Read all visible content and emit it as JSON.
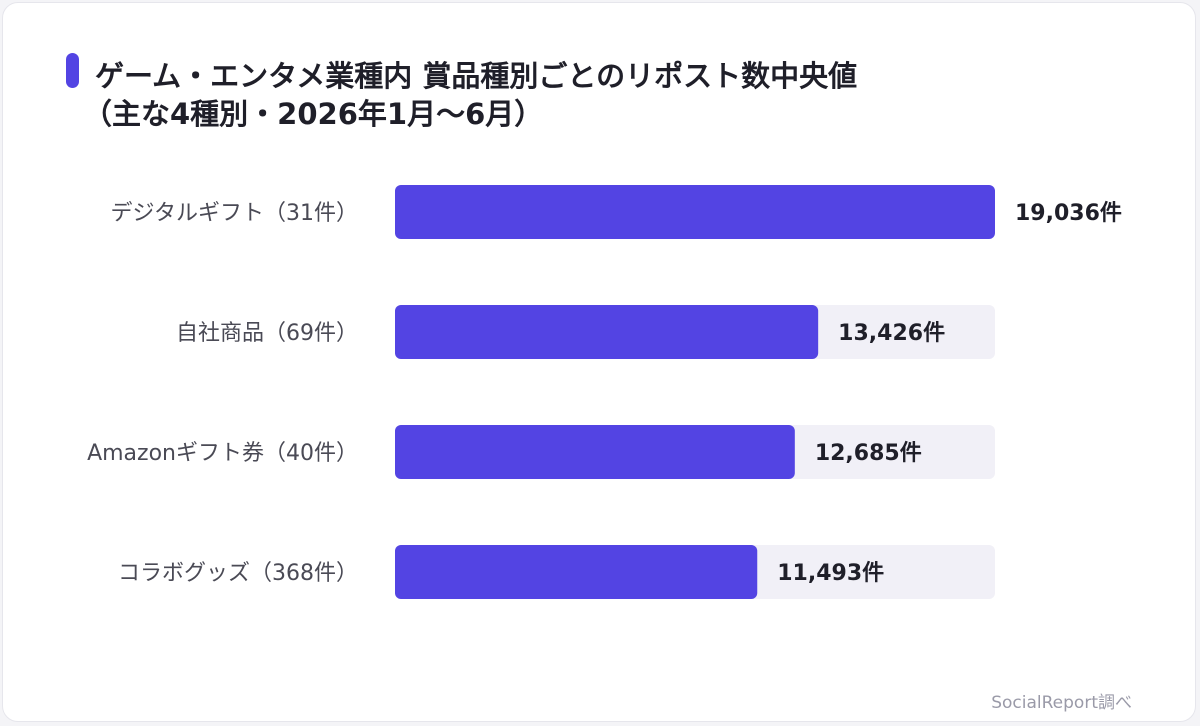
{
  "title": {
    "line1": "ゲーム・エンタメ業種内 賞品種別ごとのリポスト数中央値",
    "line2": "（主な4種別・2026年1月〜6月）"
  },
  "source": "SocialReport調べ",
  "colors": {
    "accent": "#5344e3",
    "track": "#f1f0f7",
    "label": "#4a4a55",
    "value": "#1f1f29"
  },
  "chart_data": {
    "type": "bar",
    "orientation": "horizontal",
    "categories": [
      "デジタルギフト（31件）",
      "自社商品（69件）",
      "Amazonギフト券（40件）",
      "コラボグッズ（368件）"
    ],
    "values": [
      19036,
      13426,
      12685,
      11493
    ],
    "value_labels": [
      "19,036件",
      "13,426件",
      "12,685件",
      "11,493件"
    ],
    "xlim": [
      0,
      19036
    ],
    "grid": false,
    "legend": "none"
  }
}
